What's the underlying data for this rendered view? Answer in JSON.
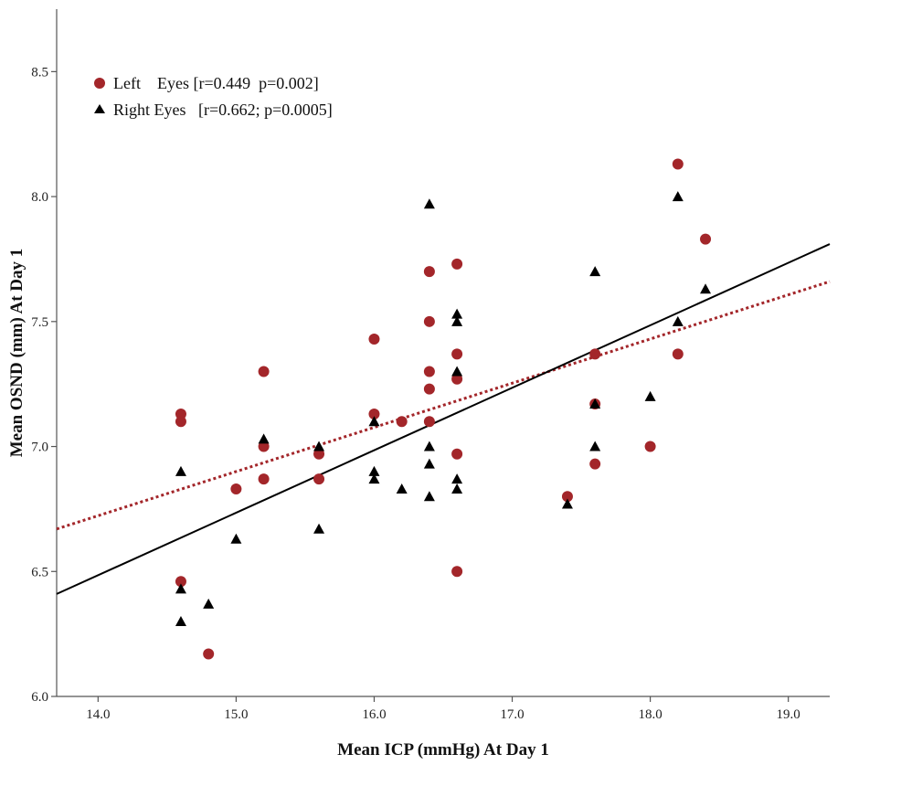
{
  "chart_data": {
    "type": "scatter",
    "xlabel": "Mean ICP (mmHg) At Day 1",
    "ylabel": "Mean OSND (mm) At Day 1",
    "xlim": [
      13.7,
      19.3
    ],
    "ylim": [
      6.0,
      8.75
    ],
    "x_ticks": [
      "14.0",
      "15.0",
      "16.0",
      "17.0",
      "18.0",
      "19.0"
    ],
    "y_ticks": [
      "6.0",
      "6.5",
      "7.0",
      "7.5",
      "8.0",
      "8.5"
    ],
    "grid": false,
    "legend_position": "top-left",
    "series": [
      {
        "name": "Left    Eyes [r=0.449  p=0.002]",
        "marker": "circle",
        "color": "#a3262a",
        "fit_style": "dotted",
        "fit_line": [
          [
            13.7,
            6.67
          ],
          [
            19.3,
            7.66
          ]
        ],
        "points": [
          [
            14.6,
            7.13
          ],
          [
            14.6,
            7.1
          ],
          [
            14.6,
            6.46
          ],
          [
            14.8,
            6.17
          ],
          [
            15.0,
            6.83
          ],
          [
            15.2,
            7.3
          ],
          [
            15.2,
            7.0
          ],
          [
            15.2,
            6.87
          ],
          [
            15.6,
            6.97
          ],
          [
            15.6,
            6.87
          ],
          [
            16.0,
            7.43
          ],
          [
            16.0,
            7.13
          ],
          [
            16.2,
            7.1
          ],
          [
            16.4,
            7.7
          ],
          [
            16.4,
            7.5
          ],
          [
            16.4,
            7.3
          ],
          [
            16.4,
            7.23
          ],
          [
            16.4,
            7.1
          ],
          [
            16.6,
            7.73
          ],
          [
            16.6,
            7.37
          ],
          [
            16.6,
            7.27
          ],
          [
            16.6,
            6.97
          ],
          [
            16.6,
            6.5
          ],
          [
            17.4,
            6.8
          ],
          [
            17.6,
            7.37
          ],
          [
            17.6,
            7.17
          ],
          [
            17.6,
            6.93
          ],
          [
            18.0,
            7.0
          ],
          [
            18.2,
            8.13
          ],
          [
            18.2,
            7.37
          ],
          [
            18.4,
            7.83
          ]
        ]
      },
      {
        "name": "Right Eyes   [r=0.662; p=0.0005]",
        "marker": "triangle",
        "color": "#000000",
        "fit_style": "solid",
        "fit_line": [
          [
            13.7,
            6.41
          ],
          [
            19.3,
            7.81
          ]
        ],
        "points": [
          [
            14.6,
            6.9
          ],
          [
            14.6,
            6.43
          ],
          [
            14.6,
            6.3
          ],
          [
            14.8,
            6.37
          ],
          [
            15.0,
            6.63
          ],
          [
            15.2,
            7.03
          ],
          [
            15.6,
            7.0
          ],
          [
            15.6,
            6.67
          ],
          [
            16.0,
            7.1
          ],
          [
            16.0,
            6.9
          ],
          [
            16.0,
            6.87
          ],
          [
            16.2,
            6.83
          ],
          [
            16.4,
            7.97
          ],
          [
            16.4,
            7.0
          ],
          [
            16.4,
            6.93
          ],
          [
            16.4,
            6.8
          ],
          [
            16.6,
            7.53
          ],
          [
            16.6,
            7.5
          ],
          [
            16.6,
            7.3
          ],
          [
            16.6,
            6.87
          ],
          [
            16.6,
            6.83
          ],
          [
            17.4,
            6.77
          ],
          [
            17.6,
            7.7
          ],
          [
            17.6,
            7.17
          ],
          [
            17.6,
            7.0
          ],
          [
            18.0,
            7.2
          ],
          [
            18.2,
            8.0
          ],
          [
            18.2,
            7.5
          ],
          [
            18.4,
            7.63
          ]
        ]
      }
    ]
  }
}
